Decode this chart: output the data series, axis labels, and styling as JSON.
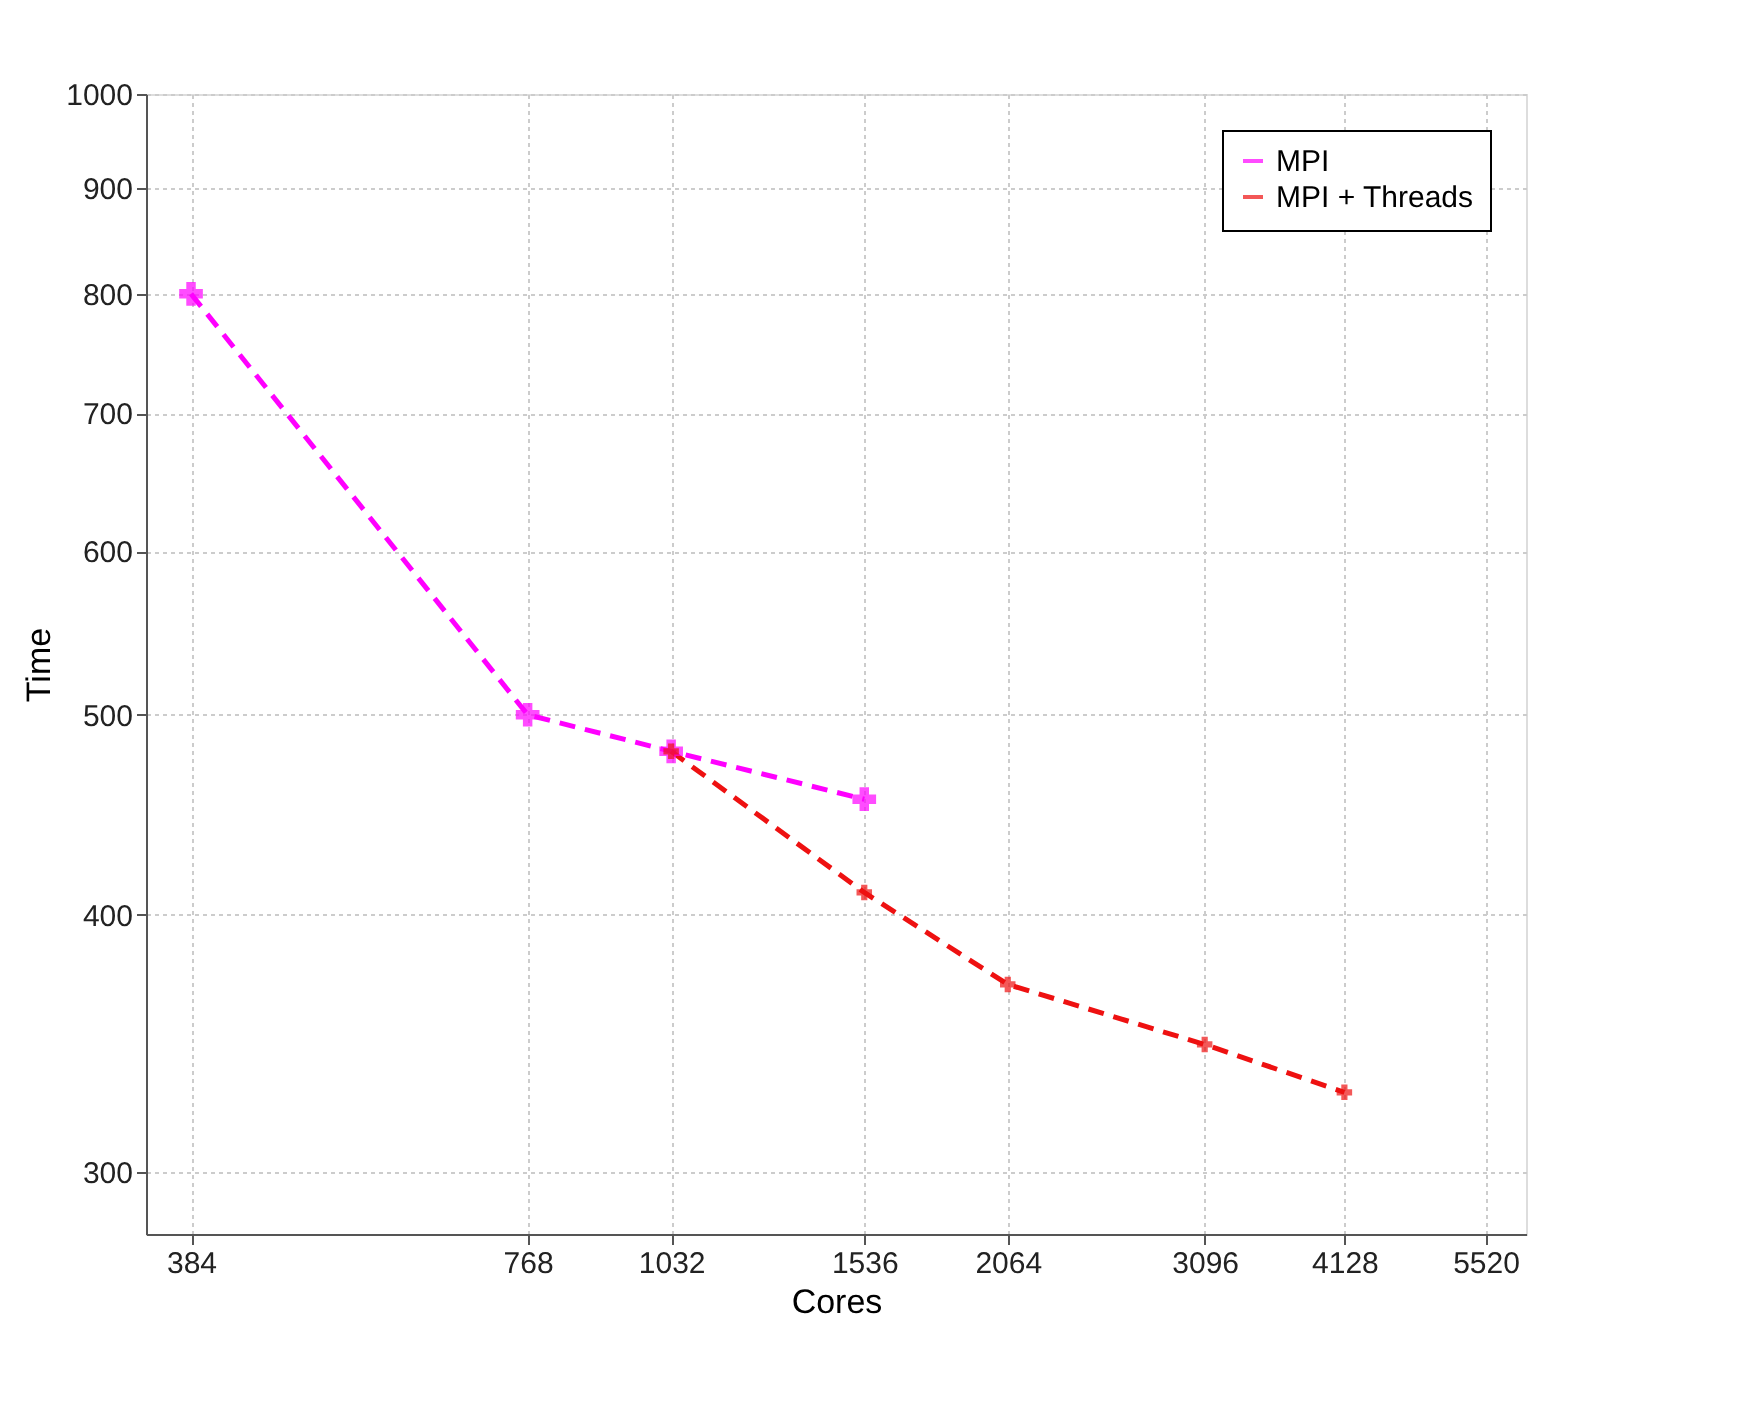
{
  "chart_data": {
    "type": "line",
    "xlabel": "Cores",
    "ylabel": "Time",
    "log": "xy",
    "xlim": [
      350,
      6000
    ],
    "xticks": [
      384,
      768,
      1032,
      1536,
      2064,
      3096,
      4128,
      5520
    ],
    "ylim": [
      280,
      1000
    ],
    "yticks": [
      300,
      400,
      500,
      600,
      700,
      800,
      900,
      1000
    ],
    "grid": true,
    "legend": "top right",
    "marker": "cross",
    "line_style": "dashed",
    "series": [
      {
        "name": "MPI",
        "color": "#ff00ff",
        "x": [
          384,
          768,
          1032,
          1536
        ],
        "values": [
          800,
          500,
          480,
          455
        ]
      },
      {
        "name": "MPI + Threads",
        "color": "#ee1111",
        "x": [
          1032,
          1536,
          2064,
          3096,
          4128
        ],
        "values": [
          480,
          410,
          370,
          346,
          328
        ]
      }
    ]
  }
}
